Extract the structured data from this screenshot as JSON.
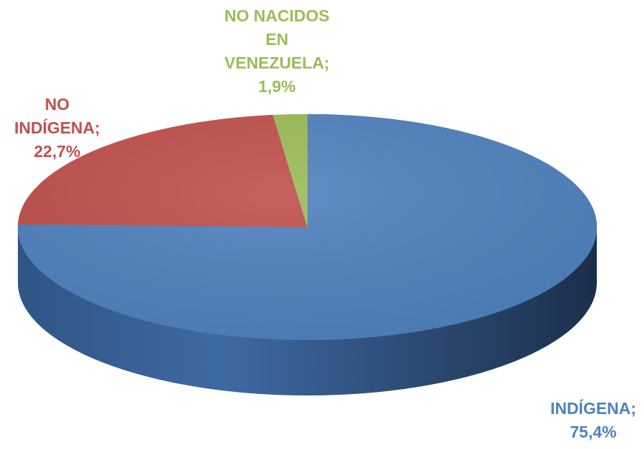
{
  "chart_data": {
    "type": "pie",
    "title": "",
    "slices": [
      {
        "label": "INDÍGENA;\n75,4%",
        "name": "INDÍGENA",
        "value": 75.4,
        "color": "#4f81bd"
      },
      {
        "label": "NO\nINDÍGENA;\n22,7%",
        "name": "NO INDÍGENA",
        "value": 22.7,
        "color": "#c0504d"
      },
      {
        "label": "NO NACIDOS\nEN\nVENEZUELA;\n1,9%",
        "name": "NO NACIDOS EN VENEZUELA",
        "value": 1.9,
        "color": "#9bbb59"
      }
    ],
    "style": "3d",
    "legend": "none"
  }
}
